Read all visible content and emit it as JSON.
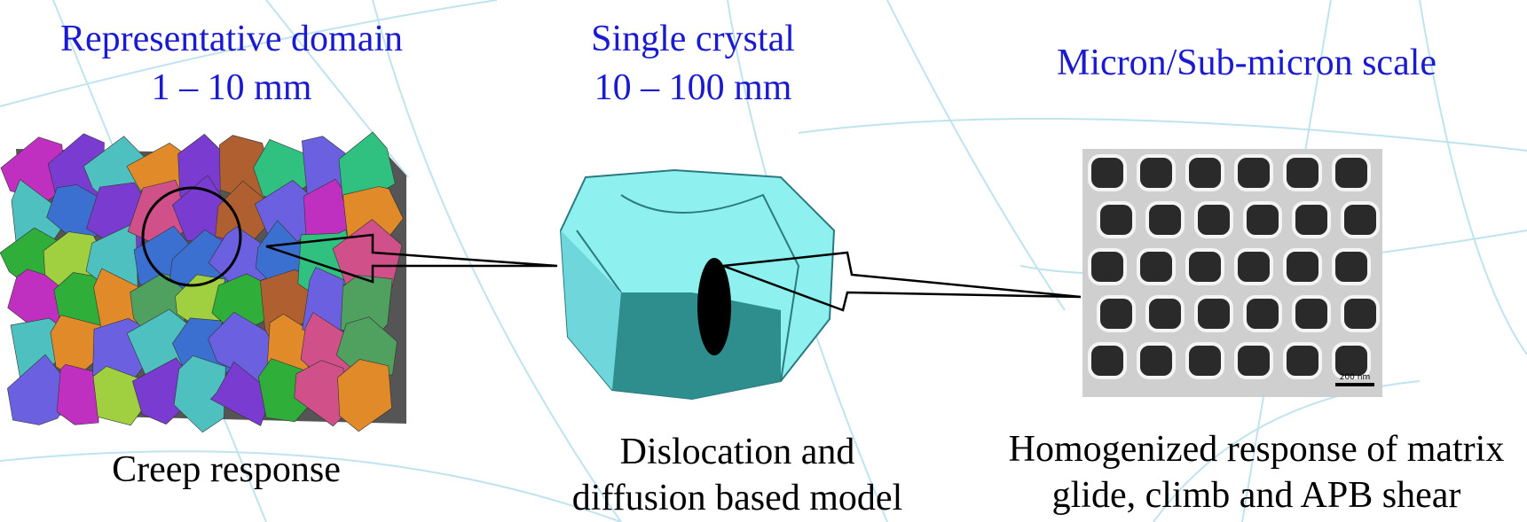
{
  "panels": [
    {
      "heading": [
        "Representative domain",
        "1 – 10 mm"
      ],
      "caption": [
        "Creep response"
      ]
    },
    {
      "heading": [
        "Single crystal",
        "10 – 100 mm"
      ],
      "caption": [
        "Dislocation and",
        "diffusion based model"
      ]
    },
    {
      "heading": [
        "Micron/Sub-micron scale"
      ],
      "caption": [
        "Homogenized response of matrix",
        "glide, climb and APB shear"
      ]
    }
  ],
  "scale_bar": "200 nm"
}
